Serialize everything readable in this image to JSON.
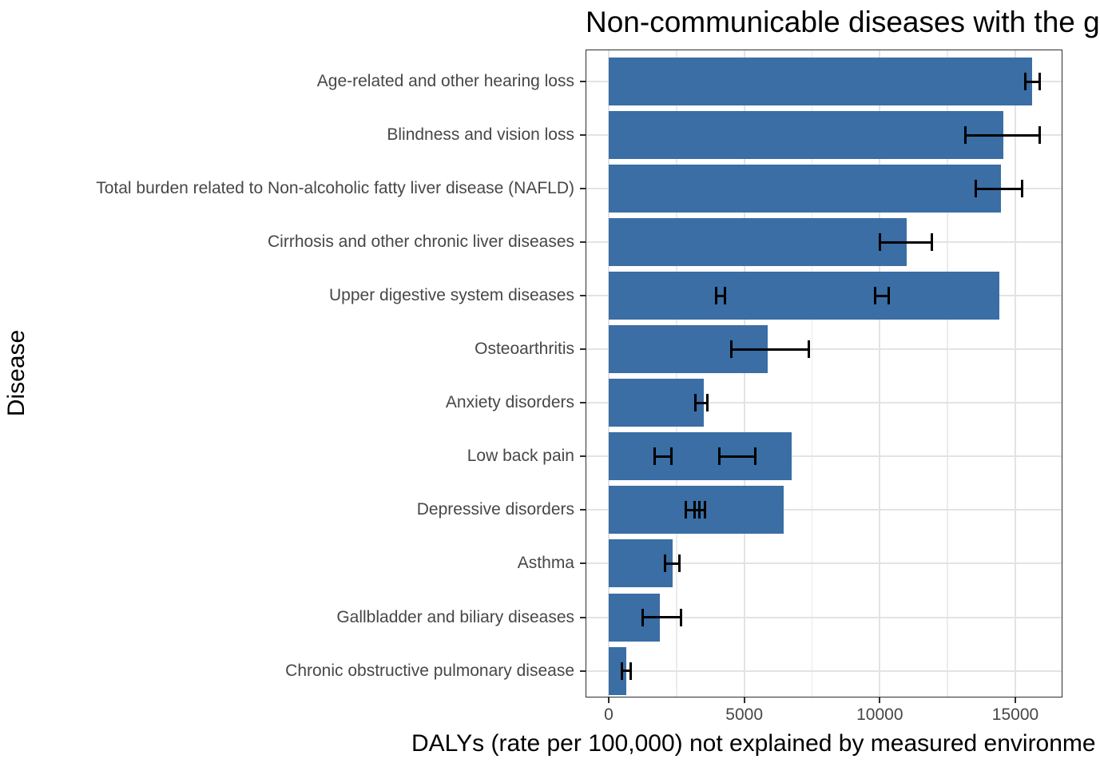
{
  "chart_data": {
    "type": "bar",
    "orientation": "horizontal",
    "title": "Non-communicable diseases with the g",
    "xlabel": "DALYs (rate per 100,000) not explained by measured environme",
    "ylabel": "Disease",
    "categories": [
      "Age-related and other hearing loss",
      "Blindness and vision loss",
      "Total burden related to Non-alcoholic fatty liver disease (NAFLD)",
      "Cirrhosis and other chronic liver diseases",
      "Upper digestive system diseases",
      "Osteoarthritis",
      "Anxiety disorders",
      "Low back pain",
      "Depressive disorders",
      "Asthma",
      "Gallbladder and biliary diseases",
      "Chronic obstructive pulmonary disease"
    ],
    "values": [
      15620,
      14550,
      14460,
      11000,
      14400,
      5850,
      3500,
      6750,
      6440,
      2350,
      1890,
      650
    ],
    "error_bars": [
      [
        [
          15380,
          15900
        ]
      ],
      [
        [
          13150,
          15900
        ]
      ],
      [
        [
          13530,
          15240
        ]
      ],
      [
        [
          10000,
          11920
        ]
      ],
      [
        [
          3950,
          4300
        ],
        [
          9820,
          10320
        ]
      ],
      [
        [
          4530,
          7380
        ]
      ],
      [
        [
          3210,
          3650
        ]
      ],
      [
        [
          1700,
          2300
        ],
        [
          4090,
          5400
        ]
      ],
      [
        [
          2830,
          3350
        ],
        [
          3170,
          3560
        ]
      ],
      [
        [
          2090,
          2620
        ]
      ],
      [
        [
          1260,
          2680
        ]
      ],
      [
        [
          480,
          820
        ]
      ]
    ],
    "x_ticks": [
      0,
      5000,
      10000,
      15000
    ],
    "x_minor_ticks": [
      2500,
      7500,
      12500
    ],
    "xlim": [
      -850,
      16750
    ],
    "bar_color": "#3A6EA5",
    "error_bar_color": "#000000",
    "gridline_color": "#e3e3e3",
    "grid": "major and minor vertical gridlines, major horizontal gridlines per category, white panel, dark border",
    "legend": "none"
  }
}
